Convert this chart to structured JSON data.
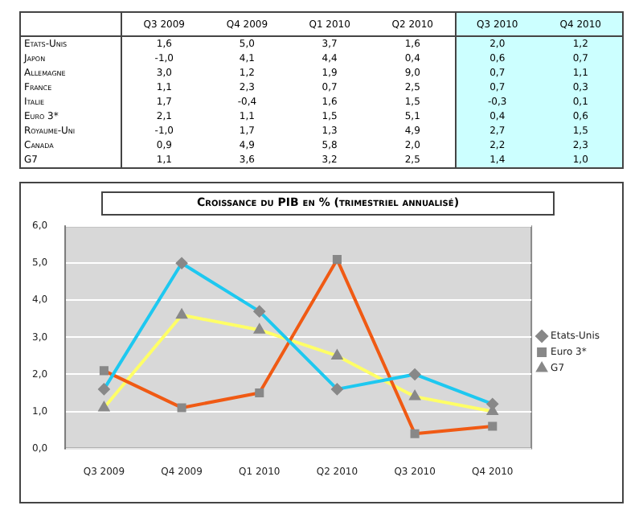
{
  "chart_data": [
    {
      "type": "heatmap",
      "categories": [
        "Q3 2009",
        "Q4 2009",
        "Q1 2010",
        "Q2 2010",
        "Q3 2010",
        "Q4 2010"
      ],
      "y_categories": [
        "Etats-Unis",
        "Japon",
        "Allemagne",
        "France",
        "Italie",
        "Euro 3*",
        "Royaume-Uni",
        "Canada",
        "G7"
      ],
      "cells": [
        [
          1.6,
          5.0,
          3.7,
          1.6,
          2.0,
          1.2
        ],
        [
          -1.0,
          4.1,
          4.4,
          0.4,
          0.6,
          0.7
        ],
        [
          3.0,
          1.2,
          1.9,
          9.0,
          0.7,
          1.1
        ],
        [
          1.1,
          2.3,
          0.7,
          2.5,
          0.7,
          0.3
        ],
        [
          1.7,
          -0.4,
          1.6,
          1.5,
          -0.3,
          0.1
        ],
        [
          2.1,
          1.1,
          1.5,
          5.1,
          0.4,
          0.6
        ],
        [
          -1.0,
          1.7,
          1.3,
          4.9,
          2.7,
          1.5
        ],
        [
          0.9,
          4.9,
          5.8,
          2.0,
          2.2,
          2.3
        ],
        [
          1.1,
          3.6,
          3.2,
          2.5,
          1.4,
          1.0
        ]
      ],
      "cell_labels": [
        [
          "1,6",
          "5,0",
          "3,7",
          "1,6",
          "2,0",
          "1,2"
        ],
        [
          "-1,0",
          "4,1",
          "4,4",
          "0,4",
          "0,6",
          "0,7"
        ],
        [
          "3,0",
          "1,2",
          "1,9",
          "9,0",
          "0,7",
          "1,1"
        ],
        [
          "1,1",
          "2,3",
          "0,7",
          "2,5",
          "0,7",
          "0,3"
        ],
        [
          "1,7",
          "-0,4",
          "1,6",
          "1,5",
          "-0,3",
          "0,1"
        ],
        [
          "2,1",
          "1,1",
          "1,5",
          "5,1",
          "0,4",
          "0,6"
        ],
        [
          "-1,0",
          "1,7",
          "1,3",
          "4,9",
          "2,7",
          "1,5"
        ],
        [
          "0,9",
          "4,9",
          "5,8",
          "2,0",
          "2,2",
          "2,3"
        ],
        [
          "1,1",
          "3,6",
          "3,2",
          "2,5",
          "1,4",
          "1,0"
        ]
      ]
    },
    {
      "type": "line",
      "title": "Croissance du PIB en % (trimestriel annualisé)",
      "categories": [
        "Q3 2009",
        "Q4 2009",
        "Q1 2010",
        "Q2 2010",
        "Q3 2010",
        "Q4 2010"
      ],
      "series": [
        {
          "name": "Etats-Unis",
          "color": "#1ec8f0",
          "marker": "diamond",
          "values": [
            1.6,
            5.0,
            3.7,
            1.6,
            2.0,
            1.2
          ]
        },
        {
          "name": "Euro 3*",
          "color": "#f05a14",
          "marker": "square",
          "values": [
            2.1,
            1.1,
            1.5,
            5.1,
            0.4,
            0.6
          ]
        },
        {
          "name": "G7",
          "color": "#ffff66",
          "marker": "triangle",
          "values": [
            1.1,
            3.6,
            3.2,
            2.5,
            1.4,
            1.0
          ]
        }
      ],
      "ylim": [
        0,
        6
      ],
      "yticks": [
        {
          "value": 0,
          "label": "0,0"
        },
        {
          "value": 1,
          "label": "1,0"
        },
        {
          "value": 2,
          "label": "2,0"
        },
        {
          "value": 3,
          "label": "3,0"
        },
        {
          "value": 4,
          "label": "4,0"
        },
        {
          "value": 5,
          "label": "5,0"
        },
        {
          "value": 6,
          "label": "6,0"
        }
      ],
      "grid": "y",
      "legend": "right"
    }
  ]
}
